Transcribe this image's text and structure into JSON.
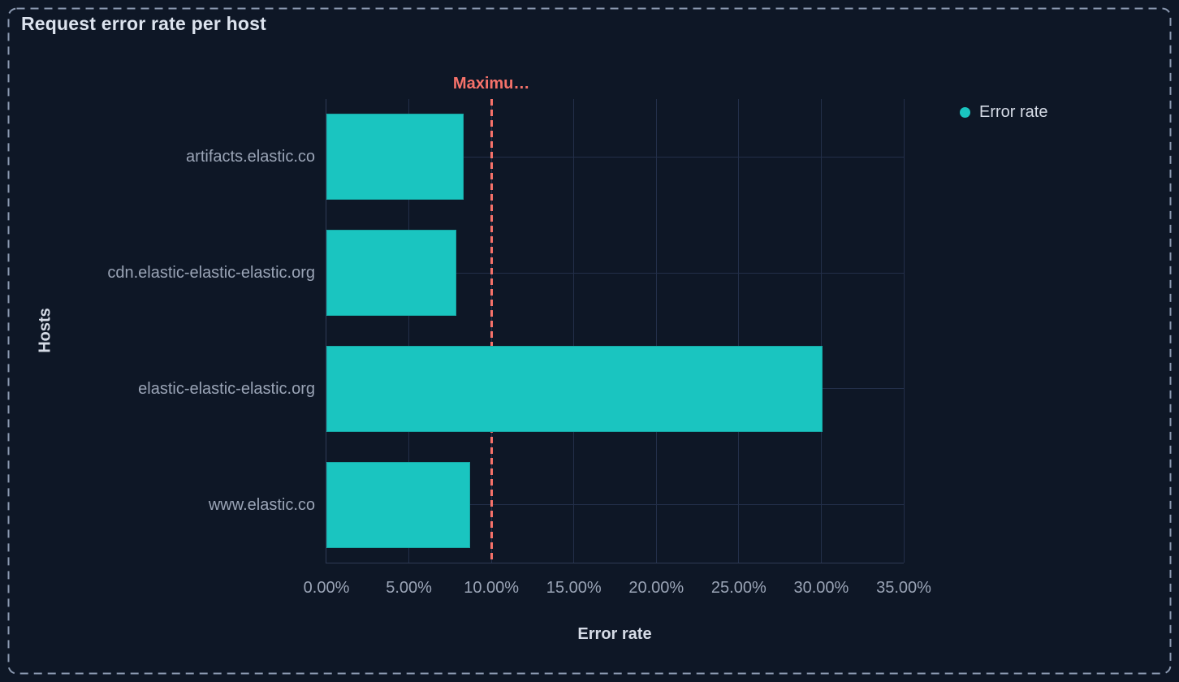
{
  "panel": {
    "title": "Request error rate per host"
  },
  "legend": {
    "position": "right",
    "items": [
      {
        "label": "Error rate",
        "color": "#1ac5c0"
      }
    ]
  },
  "annotation": {
    "label": "Maximu…",
    "value": 10,
    "color": "#f6726a"
  },
  "colors": {
    "background": "#0e1726",
    "bar": "#1ac5c0",
    "annotation": "#f6726a",
    "gridline": "#232f49",
    "axis_line": "#2f3b55",
    "text_primary": "#dce3ee",
    "text_muted": "#9aa4b6",
    "panel_border": "#8c9ab1"
  },
  "chart_data": {
    "type": "bar",
    "orientation": "horizontal",
    "title": "Request error rate per host",
    "xlabel": "Error rate",
    "ylabel": "Hosts",
    "categories": [
      "artifacts.elastic.co",
      "cdn.elastic-elastic-elastic.org",
      "elastic-elastic-elastic.org",
      "www.elastic.co"
    ],
    "series": [
      {
        "name": "Error rate",
        "values": [
          8.3,
          7.9,
          30.1,
          8.7
        ],
        "unit": "%"
      }
    ],
    "xlim": [
      0,
      35
    ],
    "xticks": [
      {
        "value": 0,
        "label": "0.00%"
      },
      {
        "value": 5,
        "label": "5.00%"
      },
      {
        "value": 10,
        "label": "10.00%"
      },
      {
        "value": 15,
        "label": "15.00%"
      },
      {
        "value": 20,
        "label": "20.00%"
      },
      {
        "value": 25,
        "label": "25.00%"
      },
      {
        "value": 30,
        "label": "30.00%"
      },
      {
        "value": 35,
        "label": "35.00%"
      }
    ],
    "grid": true,
    "legend_position": "right",
    "annotations": [
      {
        "type": "vline",
        "x": 10,
        "label": "Maximu…",
        "style": "dashed"
      }
    ]
  }
}
